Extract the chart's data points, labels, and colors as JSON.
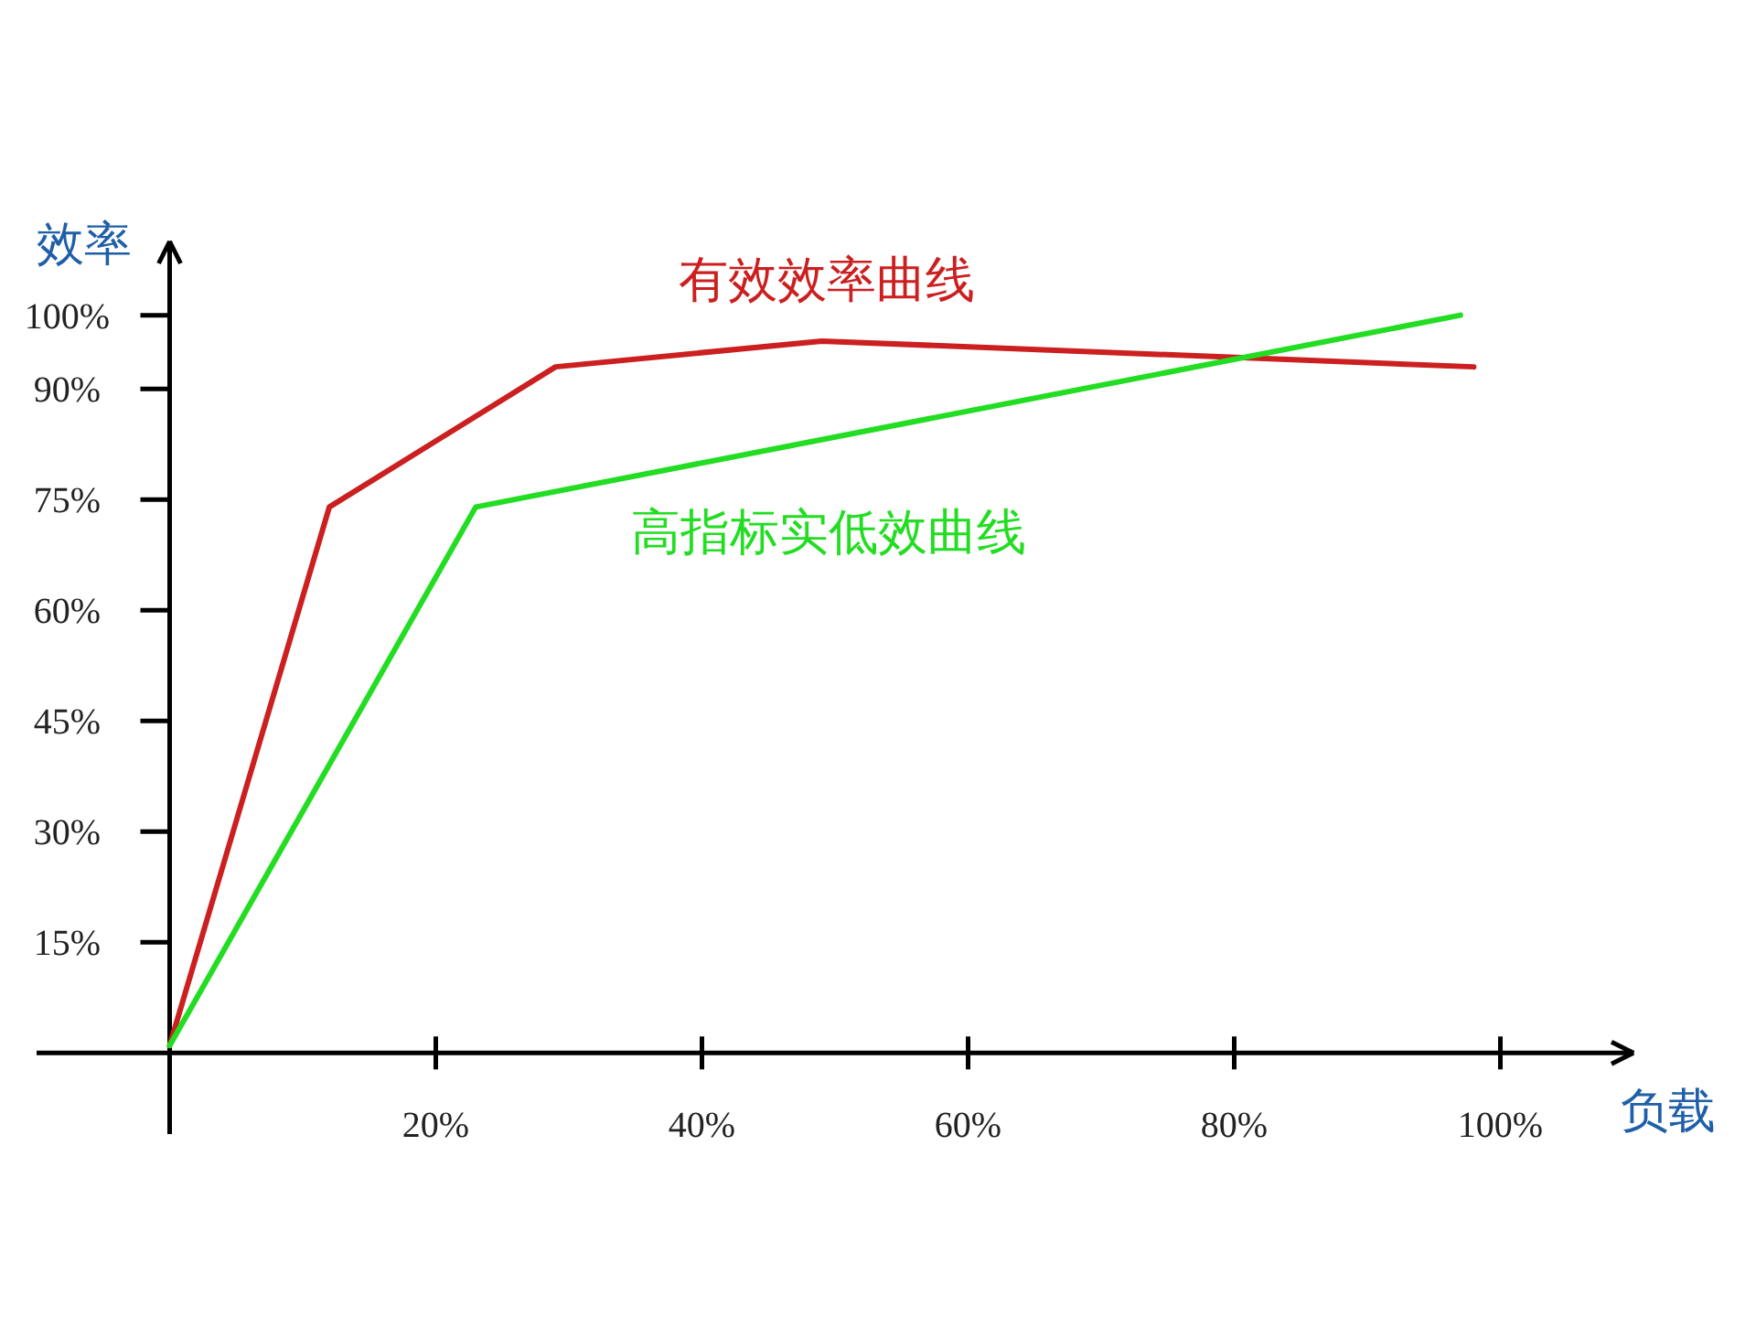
{
  "chart_data": {
    "type": "line",
    "xlabel": "负载",
    "ylabel": "效率",
    "xlim": [
      -10,
      110
    ],
    "ylim": [
      -11,
      110
    ],
    "xticks": [
      {
        "value": 20,
        "label": "20%"
      },
      {
        "value": 40,
        "label": "40%"
      },
      {
        "value": 60,
        "label": "60%"
      },
      {
        "value": 80,
        "label": "80%"
      },
      {
        "value": 100,
        "label": "100%"
      }
    ],
    "yticks": [
      {
        "value": 15,
        "label": "15%"
      },
      {
        "value": 30,
        "label": "30%"
      },
      {
        "value": 45,
        "label": "45%"
      },
      {
        "value": 60,
        "label": "60%"
      },
      {
        "value": 75,
        "label": "75%"
      },
      {
        "value": 90,
        "label": "90%"
      },
      {
        "value": 100,
        "label": "100%"
      }
    ],
    "grid": false,
    "marker": "none",
    "line_style": "solid",
    "series": [
      {
        "name": "有效效率曲线",
        "color": "#cc1f1f",
        "x": [
          0,
          12,
          29,
          49,
          98
        ],
        "values": [
          1,
          74,
          93,
          96.5,
          93
        ]
      },
      {
        "name": "高指标实低效曲线",
        "color": "#22dd22",
        "x": [
          0,
          23,
          97
        ],
        "values": [
          1,
          74,
          100
        ]
      }
    ]
  }
}
